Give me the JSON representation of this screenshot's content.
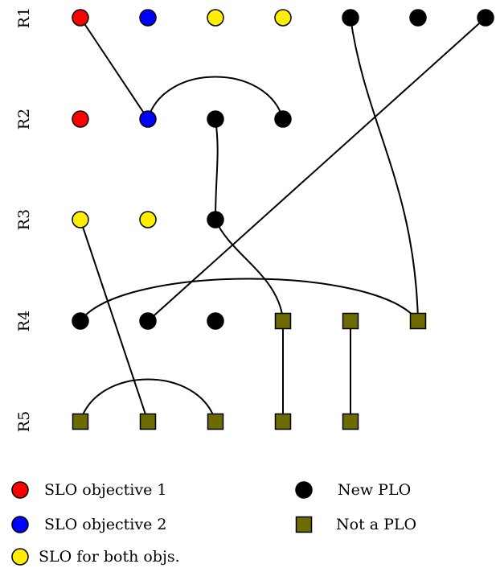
{
  "rows": [
    {
      "id": "R1",
      "label": "R1"
    },
    {
      "id": "R2",
      "label": "R2"
    },
    {
      "id": "R3",
      "label": "R3"
    },
    {
      "id": "R4",
      "label": "R4"
    },
    {
      "id": "R5",
      "label": "R5"
    }
  ],
  "categories": {
    "slo1": {
      "shape": "circle",
      "color": "#ff0000"
    },
    "slo2": {
      "shape": "circle",
      "color": "#0000ff"
    },
    "both": {
      "shape": "circle",
      "color": "#ffee00"
    },
    "newplo": {
      "shape": "circle",
      "color": "#000000"
    },
    "notplo": {
      "shape": "square",
      "color": "#6b6b00"
    }
  },
  "nodes": [
    {
      "id": "r1c1",
      "row": "R1",
      "col": 1,
      "cat": "slo1"
    },
    {
      "id": "r1c2",
      "row": "R1",
      "col": 2,
      "cat": "slo2"
    },
    {
      "id": "r1c3",
      "row": "R1",
      "col": 3,
      "cat": "both"
    },
    {
      "id": "r1c4",
      "row": "R1",
      "col": 4,
      "cat": "both"
    },
    {
      "id": "r1c5",
      "row": "R1",
      "col": 5,
      "cat": "newplo"
    },
    {
      "id": "r1c6",
      "row": "R1",
      "col": 6,
      "cat": "newplo"
    },
    {
      "id": "r1c7",
      "row": "R1",
      "col": 7,
      "cat": "newplo"
    },
    {
      "id": "r2c1",
      "row": "R2",
      "col": 1,
      "cat": "slo1"
    },
    {
      "id": "r2c2",
      "row": "R2",
      "col": 2,
      "cat": "slo2"
    },
    {
      "id": "r2c3",
      "row": "R2",
      "col": 3,
      "cat": "newplo"
    },
    {
      "id": "r2c4",
      "row": "R2",
      "col": 4,
      "cat": "newplo"
    },
    {
      "id": "r3c1",
      "row": "R3",
      "col": 1,
      "cat": "both"
    },
    {
      "id": "r3c2",
      "row": "R3",
      "col": 2,
      "cat": "both"
    },
    {
      "id": "r3c3",
      "row": "R3",
      "col": 3,
      "cat": "newplo"
    },
    {
      "id": "r4c1",
      "row": "R4",
      "col": 1,
      "cat": "newplo"
    },
    {
      "id": "r4c2",
      "row": "R4",
      "col": 2,
      "cat": "newplo"
    },
    {
      "id": "r4c3",
      "row": "R4",
      "col": 3,
      "cat": "newplo"
    },
    {
      "id": "r4c4",
      "row": "R4",
      "col": 4,
      "cat": "notplo"
    },
    {
      "id": "r4c5",
      "row": "R4",
      "col": 5,
      "cat": "notplo"
    },
    {
      "id": "r4c6",
      "row": "R4",
      "col": 6,
      "cat": "notplo"
    },
    {
      "id": "r5c1",
      "row": "R5",
      "col": 1,
      "cat": "notplo"
    },
    {
      "id": "r5c2",
      "row": "R5",
      "col": 2,
      "cat": "notplo"
    },
    {
      "id": "r5c3",
      "row": "R5",
      "col": 3,
      "cat": "notplo"
    },
    {
      "id": "r5c4",
      "row": "R5",
      "col": 4,
      "cat": "notplo"
    },
    {
      "id": "r5c5",
      "row": "R5",
      "col": 5,
      "cat": "notplo"
    }
  ],
  "edges": [
    {
      "from": "r1c1",
      "to": "r2c2",
      "style": "straight"
    },
    {
      "from": "r2c2",
      "to": "r2c4",
      "style": "arc-up"
    },
    {
      "from": "r2c3",
      "to": "r3c3",
      "style": "curve"
    },
    {
      "from": "r1c5",
      "to": "r4c6",
      "style": "curve"
    },
    {
      "from": "r1c7",
      "to": "r4c2",
      "style": "straight"
    },
    {
      "from": "r3c3",
      "to": "r4c4",
      "style": "curve"
    },
    {
      "from": "r4c1",
      "to": "r4c6",
      "style": "arc-up"
    },
    {
      "from": "r3c1",
      "to": "r5c2",
      "style": "straight"
    },
    {
      "from": "r5c1",
      "to": "r5c3",
      "style": "arc-up"
    },
    {
      "from": "r4c4",
      "to": "r5c4",
      "style": "straight"
    },
    {
      "from": "r4c5",
      "to": "r5c5",
      "style": "straight"
    }
  ],
  "legend": [
    {
      "cat": "slo1",
      "label": "SLO objective 1"
    },
    {
      "cat": "slo2",
      "label": "SLO objective 2"
    },
    {
      "cat": "both",
      "label": "SLO for both objs."
    },
    {
      "cat": "newplo",
      "label": "New PLO"
    },
    {
      "cat": "notplo",
      "label": "Not a PLO"
    }
  ]
}
